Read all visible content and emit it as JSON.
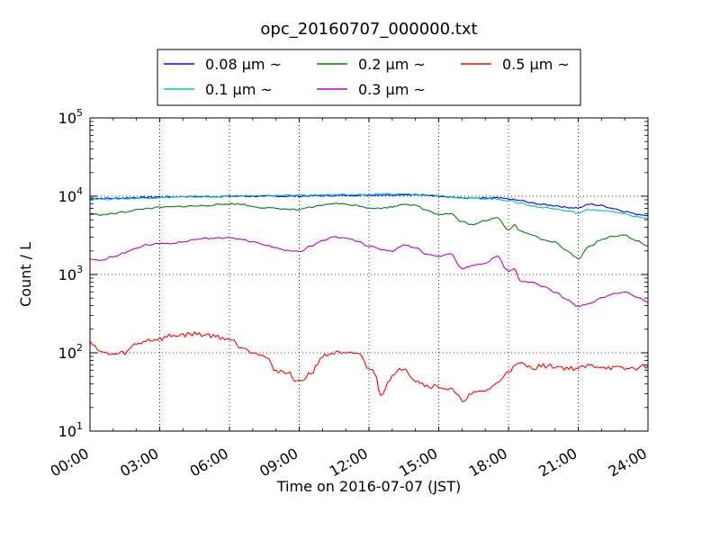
{
  "chart_data": {
    "type": "line",
    "title": "opc_20160707_000000.txt",
    "xlabel": "Time on 2016-07-07 (JST)",
    "ylabel": "Count / L",
    "y_scale": "log",
    "ylim": [
      10,
      100000
    ],
    "xlim": [
      "00:00",
      "24:00"
    ],
    "grid": true,
    "legend_position": "top-center",
    "x_ticks": [
      "00:00",
      "03:00",
      "06:00",
      "09:00",
      "12:00",
      "15:00",
      "18:00",
      "21:00",
      "24:00"
    ],
    "y_ticks": [
      {
        "base": "10",
        "exp": "1",
        "value": 10
      },
      {
        "base": "10",
        "exp": "2",
        "value": 100
      },
      {
        "base": "10",
        "exp": "3",
        "value": 1000
      },
      {
        "base": "10",
        "exp": "4",
        "value": 10000
      },
      {
        "base": "10",
        "exp": "5",
        "value": 100000
      }
    ],
    "series": [
      {
        "name": "0.08 μm ~",
        "color": "#0000ff",
        "x": [
          "00:00",
          "00:30",
          "01:00",
          "01:30",
          "02:00",
          "02:30",
          "03:00",
          "03:30",
          "04:00",
          "04:30",
          "05:00",
          "05:30",
          "06:00",
          "06:30",
          "07:00",
          "07:30",
          "08:00",
          "08:30",
          "09:00",
          "09:30",
          "10:00",
          "10:30",
          "11:00",
          "11:30",
          "12:00",
          "12:30",
          "13:00",
          "13:30",
          "14:00",
          "14:30",
          "15:00",
          "15:30",
          "16:00",
          "16:30",
          "17:00",
          "17:30",
          "18:00",
          "18:30",
          "19:00",
          "19:30",
          "20:00",
          "20:30",
          "21:00",
          "21:30",
          "22:00",
          "22:30",
          "23:00",
          "23:30",
          "24:00"
        ],
        "y": [
          9500,
          9400,
          9400,
          9500,
          9600,
          9700,
          9800,
          9800,
          9900,
          9900,
          9900,
          9900,
          10000,
          10000,
          10000,
          10000,
          10000,
          10000,
          10000,
          10100,
          10100,
          10200,
          10200,
          10300,
          10300,
          10400,
          10400,
          10500,
          10400,
          10300,
          10100,
          9800,
          9500,
          9400,
          9400,
          9500,
          9200,
          8800,
          8200,
          7800,
          7600,
          7200,
          7100,
          7900,
          7600,
          7000,
          6400,
          5900,
          5700
        ]
      },
      {
        "name": "0.1 μm ~",
        "color": "#00bfbf",
        "x": [
          "00:00",
          "00:30",
          "01:00",
          "01:30",
          "02:00",
          "02:30",
          "03:00",
          "03:30",
          "04:00",
          "04:30",
          "05:00",
          "05:30",
          "06:00",
          "06:30",
          "07:00",
          "07:30",
          "08:00",
          "08:30",
          "09:00",
          "09:30",
          "10:00",
          "10:30",
          "11:00",
          "11:30",
          "12:00",
          "12:30",
          "13:00",
          "13:30",
          "14:00",
          "14:30",
          "15:00",
          "15:30",
          "16:00",
          "16:30",
          "17:00",
          "17:30",
          "18:00",
          "18:30",
          "19:00",
          "19:30",
          "20:00",
          "20:30",
          "21:00",
          "21:30",
          "22:00",
          "22:30",
          "23:00",
          "23:30",
          "24:00"
        ],
        "y": [
          9300,
          9200,
          9200,
          9300,
          9400,
          9500,
          9600,
          9700,
          9800,
          9800,
          9800,
          9900,
          10000,
          10100,
          10100,
          10100,
          10200,
          10200,
          10300,
          10300,
          10400,
          10400,
          10500,
          10500,
          10500,
          10600,
          10600,
          10700,
          10600,
          10400,
          10200,
          9900,
          9600,
          9400,
          9300,
          9200,
          8800,
          8200,
          7500,
          7200,
          6900,
          6500,
          6100,
          6800,
          6600,
          6300,
          5900,
          5500,
          5200
        ]
      },
      {
        "name": "0.2 μm ~",
        "color": "#008000",
        "x": [
          "00:00",
          "00:30",
          "01:00",
          "01:30",
          "02:00",
          "02:30",
          "03:00",
          "03:30",
          "04:00",
          "04:30",
          "05:00",
          "05:30",
          "06:00",
          "06:30",
          "07:00",
          "07:30",
          "08:00",
          "08:30",
          "09:00",
          "09:30",
          "10:00",
          "10:30",
          "11:00",
          "11:30",
          "12:00",
          "12:30",
          "13:00",
          "13:30",
          "14:00",
          "14:30",
          "15:00",
          "15:30",
          "16:00",
          "16:30",
          "17:00",
          "17:30",
          "18:00",
          "18:15",
          "18:30",
          "19:00",
          "19:30",
          "20:00",
          "20:30",
          "21:00",
          "21:30",
          "22:00",
          "22:30",
          "23:00",
          "23:30",
          "24:00"
        ],
        "y": [
          5900,
          5800,
          6000,
          6300,
          6700,
          7000,
          7200,
          7300,
          7400,
          7500,
          7600,
          7800,
          8000,
          7900,
          7400,
          7100,
          7000,
          6800,
          6700,
          7200,
          7700,
          8100,
          7900,
          7600,
          7100,
          7000,
          7300,
          8000,
          7600,
          6600,
          5900,
          6000,
          4700,
          4300,
          4900,
          5400,
          3700,
          4300,
          3600,
          3200,
          2800,
          2600,
          2000,
          1600,
          2300,
          2800,
          3100,
          3200,
          2700,
          2300
        ]
      },
      {
        "name": "0.3 μm ~",
        "color": "#bf00bf",
        "x": [
          "00:00",
          "00:30",
          "01:00",
          "01:30",
          "02:00",
          "02:30",
          "03:00",
          "03:30",
          "04:00",
          "04:30",
          "05:00",
          "05:30",
          "06:00",
          "06:30",
          "07:00",
          "07:30",
          "08:00",
          "08:30",
          "09:00",
          "09:30",
          "10:00",
          "10:30",
          "11:00",
          "11:30",
          "12:00",
          "12:30",
          "13:00",
          "13:30",
          "14:00",
          "14:30",
          "15:00",
          "15:30",
          "16:00",
          "16:30",
          "17:00",
          "17:30",
          "18:00",
          "18:15",
          "18:30",
          "19:00",
          "19:30",
          "20:00",
          "20:30",
          "21:00",
          "21:30",
          "22:00",
          "22:30",
          "23:00",
          "23:30",
          "24:00"
        ],
        "y": [
          1600,
          1500,
          1700,
          1900,
          2200,
          2400,
          2500,
          2500,
          2600,
          2800,
          2900,
          2900,
          3000,
          2800,
          2600,
          2400,
          2200,
          2000,
          1950,
          2300,
          2700,
          3000,
          2900,
          2700,
          2300,
          2100,
          2000,
          2400,
          2200,
          1800,
          1700,
          1850,
          1200,
          1300,
          1400,
          1700,
          1100,
          1200,
          820,
          800,
          700,
          600,
          480,
          390,
          430,
          500,
          560,
          600,
          520,
          440
        ]
      },
      {
        "name": "0.5 μm ~",
        "color": "#ff0000",
        "x": [
          "00:00",
          "00:30",
          "01:00",
          "01:30",
          "02:00",
          "02:30",
          "03:00",
          "03:30",
          "04:00",
          "04:30",
          "05:00",
          "05:30",
          "06:00",
          "06:30",
          "07:00",
          "07:30",
          "08:00",
          "08:30",
          "09:00",
          "09:30",
          "10:00",
          "10:30",
          "11:00",
          "11:30",
          "12:00",
          "12:15",
          "12:30",
          "13:00",
          "13:30",
          "14:00",
          "14:30",
          "15:00",
          "15:30",
          "16:00",
          "16:30",
          "17:00",
          "17:30",
          "18:00",
          "18:30",
          "19:00",
          "19:30",
          "20:00",
          "20:30",
          "21:00",
          "21:30",
          "22:00",
          "22:30",
          "23:00",
          "23:30",
          "24:00"
        ],
        "y": [
          140,
          100,
          95,
          100,
          130,
          145,
          150,
          165,
          170,
          175,
          170,
          160,
          150,
          120,
          105,
          90,
          60,
          55,
          42,
          55,
          90,
          100,
          95,
          100,
          65,
          55,
          30,
          50,
          65,
          45,
          38,
          37,
          34,
          25,
          30,
          33,
          40,
          60,
          72,
          65,
          68,
          67,
          64,
          63,
          68,
          67,
          64,
          62,
          64,
          68
        ]
      }
    ]
  }
}
